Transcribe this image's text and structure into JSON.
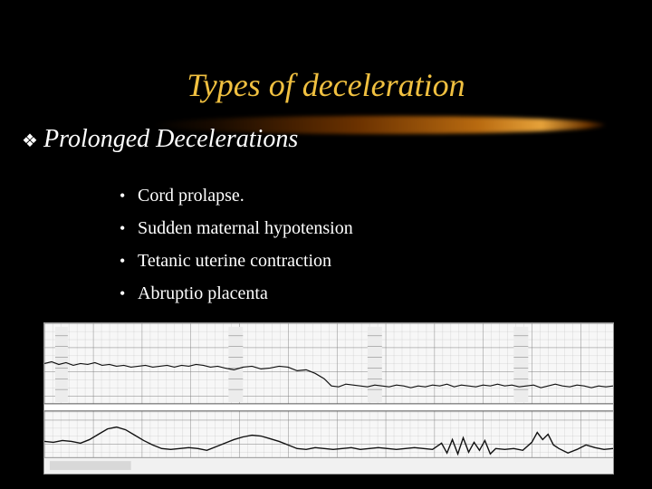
{
  "slide": {
    "title": "Types of deceleration",
    "section_heading": "Prolonged Decelerations",
    "heading_marker": "❖",
    "bullets": [
      "Cord prolapse.",
      "Sudden maternal hypotension",
      "Tetanic uterine contraction",
      "Abruptio placenta"
    ]
  },
  "colors": {
    "background": "#000000",
    "title": "#f0c040",
    "text": "#ffffff",
    "trace_paper": "#f7f7f7",
    "trace_ink": "#111111"
  },
  "icons": {
    "heading_marker": "diamond-bullet-icon",
    "trace_image": "fetal-heart-rate-tracing"
  }
}
